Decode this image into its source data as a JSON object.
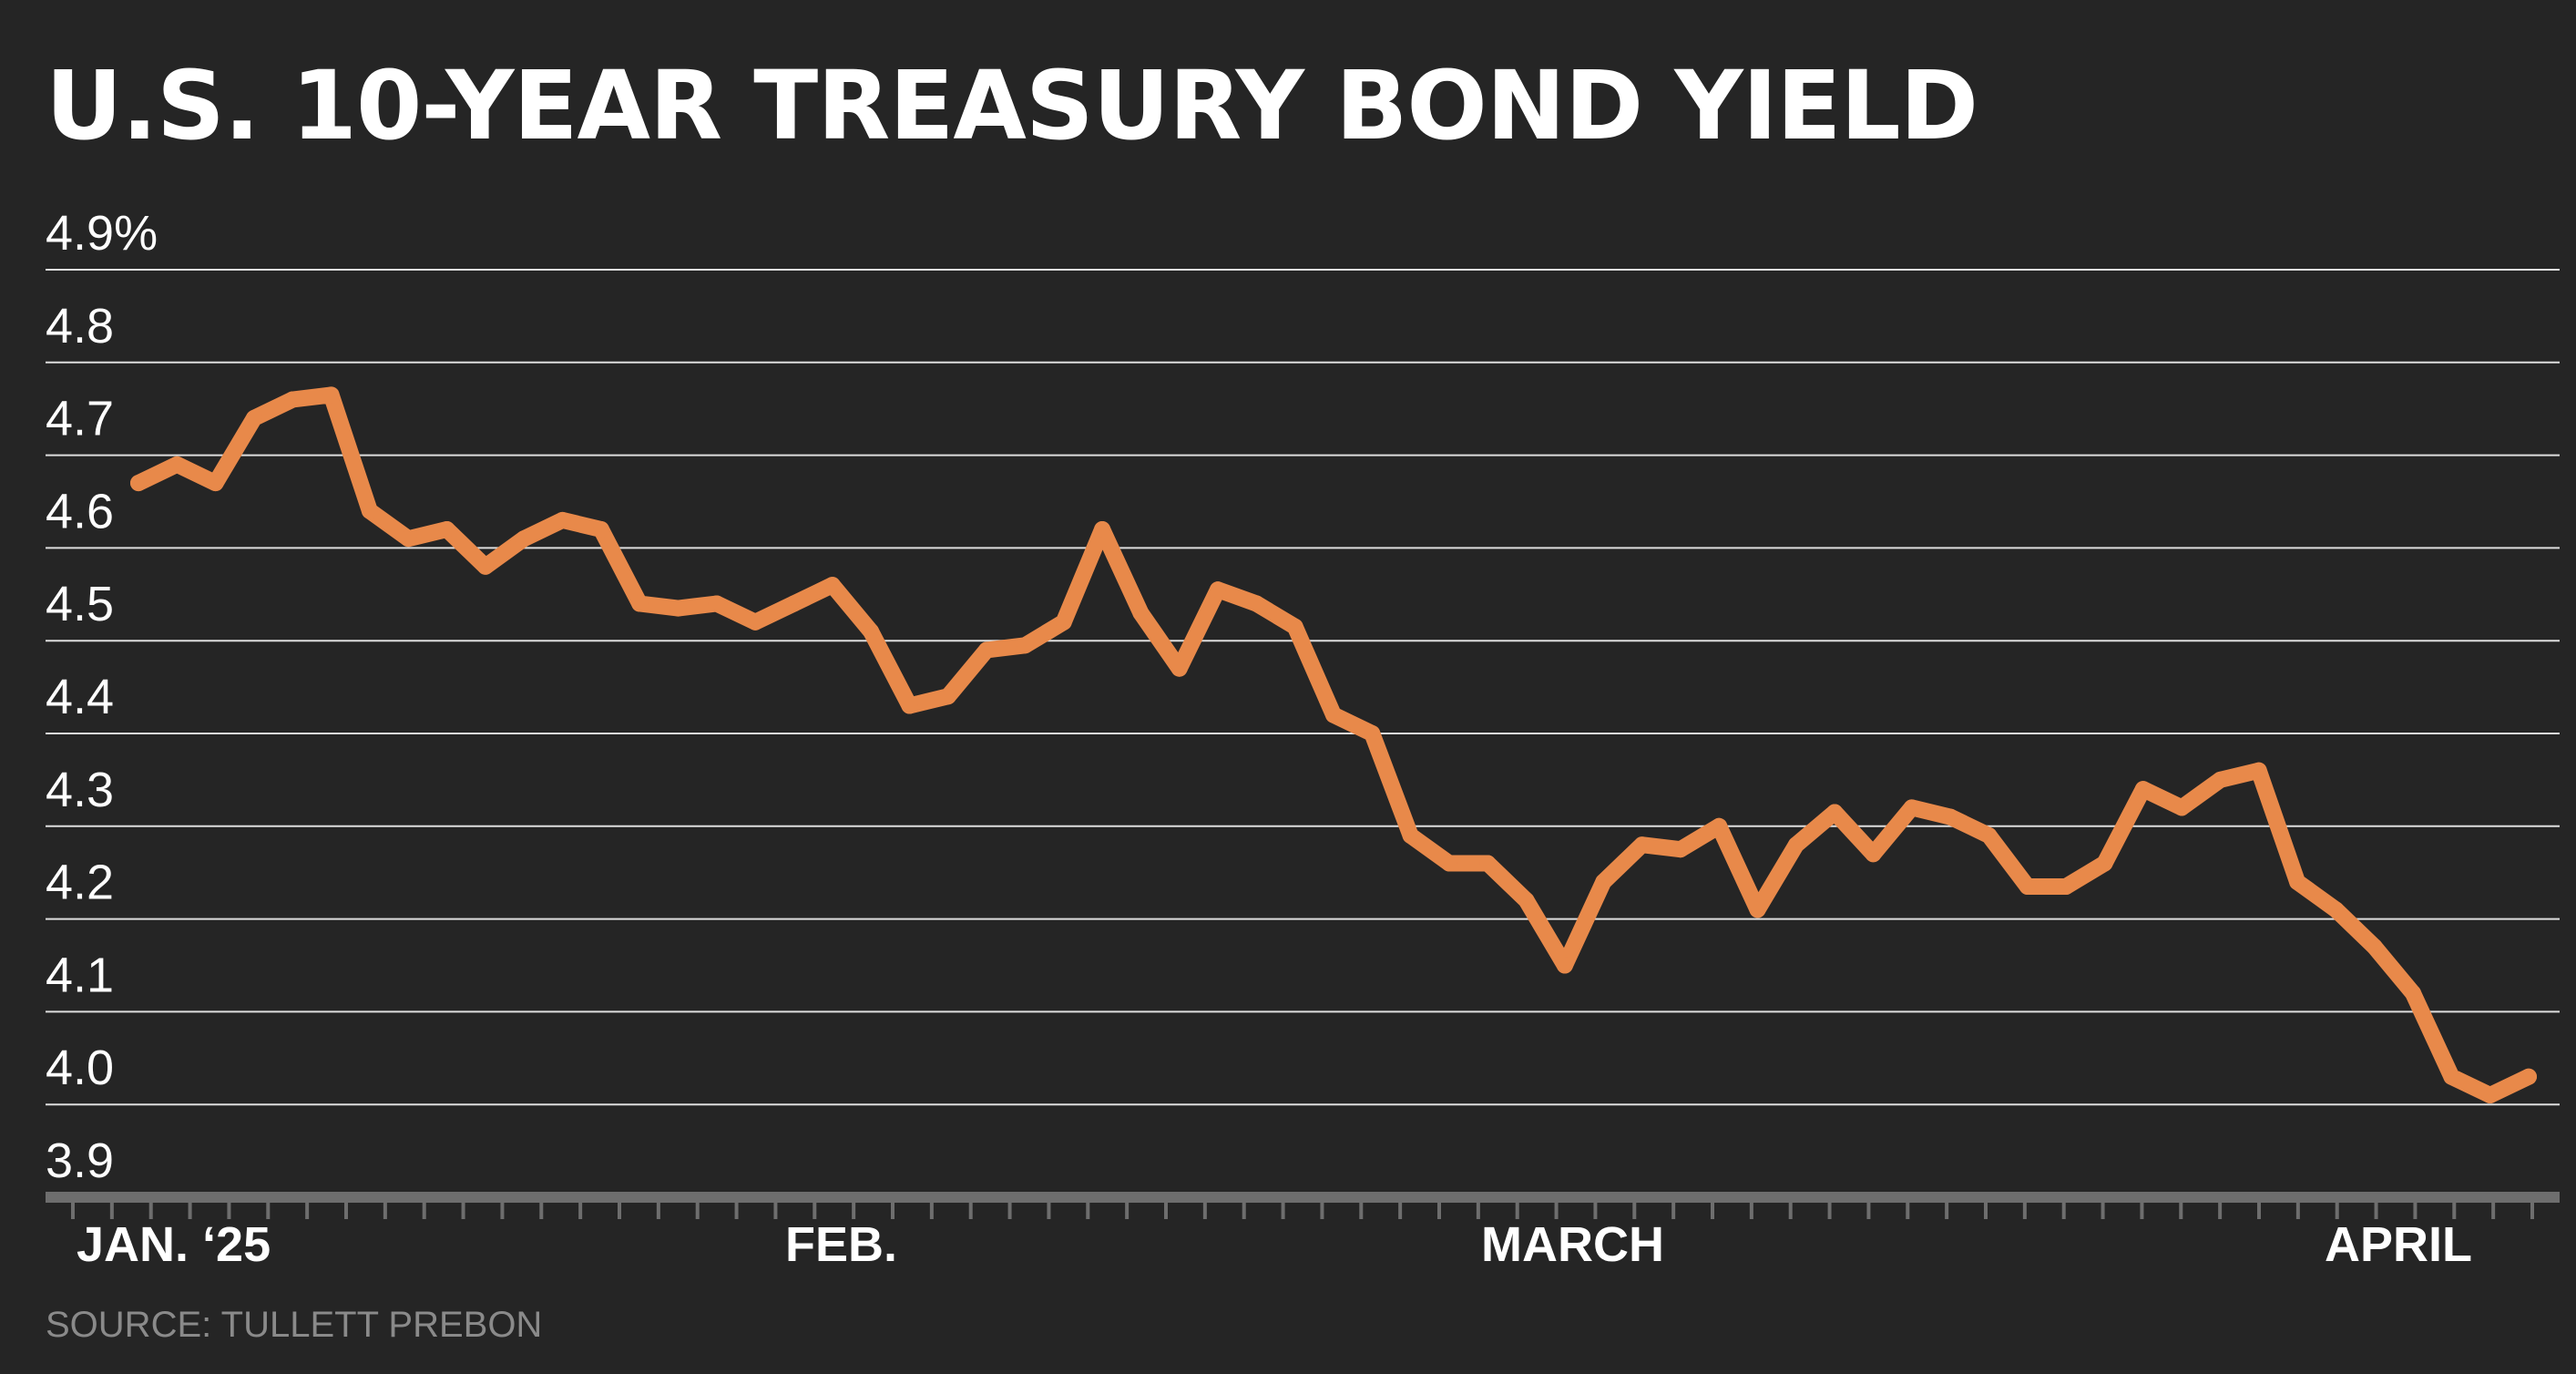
{
  "header": {
    "title": "U.S. 10-YEAR TREASURY BOND YIELD"
  },
  "footer": {
    "source": "SOURCE: TULLETT PREBON"
  },
  "colors": {
    "background": "#252525",
    "line": "#e8894a",
    "grid": "#ffffff",
    "axis": "#6e6e6e",
    "title": "#ffffff",
    "source": "#8a8a8a"
  },
  "chart_data": {
    "type": "line",
    "title": "U.S. 10-YEAR TREASURY BOND YIELD",
    "xlabel": "",
    "ylabel": "",
    "ylim": [
      3.9,
      4.9
    ],
    "yticks": [
      {
        "value": 4.9,
        "label": "4.9%"
      },
      {
        "value": 4.8,
        "label": "4.8"
      },
      {
        "value": 4.7,
        "label": "4.7"
      },
      {
        "value": 4.6,
        "label": "4.6"
      },
      {
        "value": 4.5,
        "label": "4.5"
      },
      {
        "value": 4.4,
        "label": "4.4"
      },
      {
        "value": 4.3,
        "label": "4.3"
      },
      {
        "value": 4.2,
        "label": "4.2"
      },
      {
        "value": 4.1,
        "label": "4.1"
      },
      {
        "value": 4.0,
        "label": "4.0"
      },
      {
        "value": 3.9,
        "label": "3.9"
      }
    ],
    "grid": true,
    "xticks": [
      {
        "label": "JAN. ‘25",
        "index": 0
      },
      {
        "label": "FEB.",
        "index": 18
      },
      {
        "label": "MARCH",
        "index": 37
      },
      {
        "label": "APRIL",
        "index": 58
      }
    ],
    "n_ticks": 64,
    "series": [
      {
        "values": [
          4.67,
          4.69,
          4.67,
          4.74,
          4.76,
          4.765,
          4.64,
          4.61,
          4.62,
          4.58,
          4.61,
          4.63,
          4.62,
          4.54,
          4.535,
          4.54,
          4.52,
          4.54,
          4.56,
          4.51,
          4.43,
          4.44,
          4.49,
          4.495,
          4.52,
          4.62,
          4.53,
          4.47,
          4.555,
          4.54,
          4.515,
          4.42,
          4.4,
          4.29,
          4.26,
          4.26,
          4.22,
          4.15,
          4.24,
          4.28,
          4.275,
          4.3,
          4.21,
          4.28,
          4.315,
          4.27,
          4.32,
          4.31,
          4.29,
          4.235,
          4.235,
          4.26,
          4.34,
          4.32,
          4.35,
          4.36,
          4.24,
          4.21,
          4.17,
          4.12,
          4.03,
          4.01,
          4.03
        ]
      }
    ]
  }
}
